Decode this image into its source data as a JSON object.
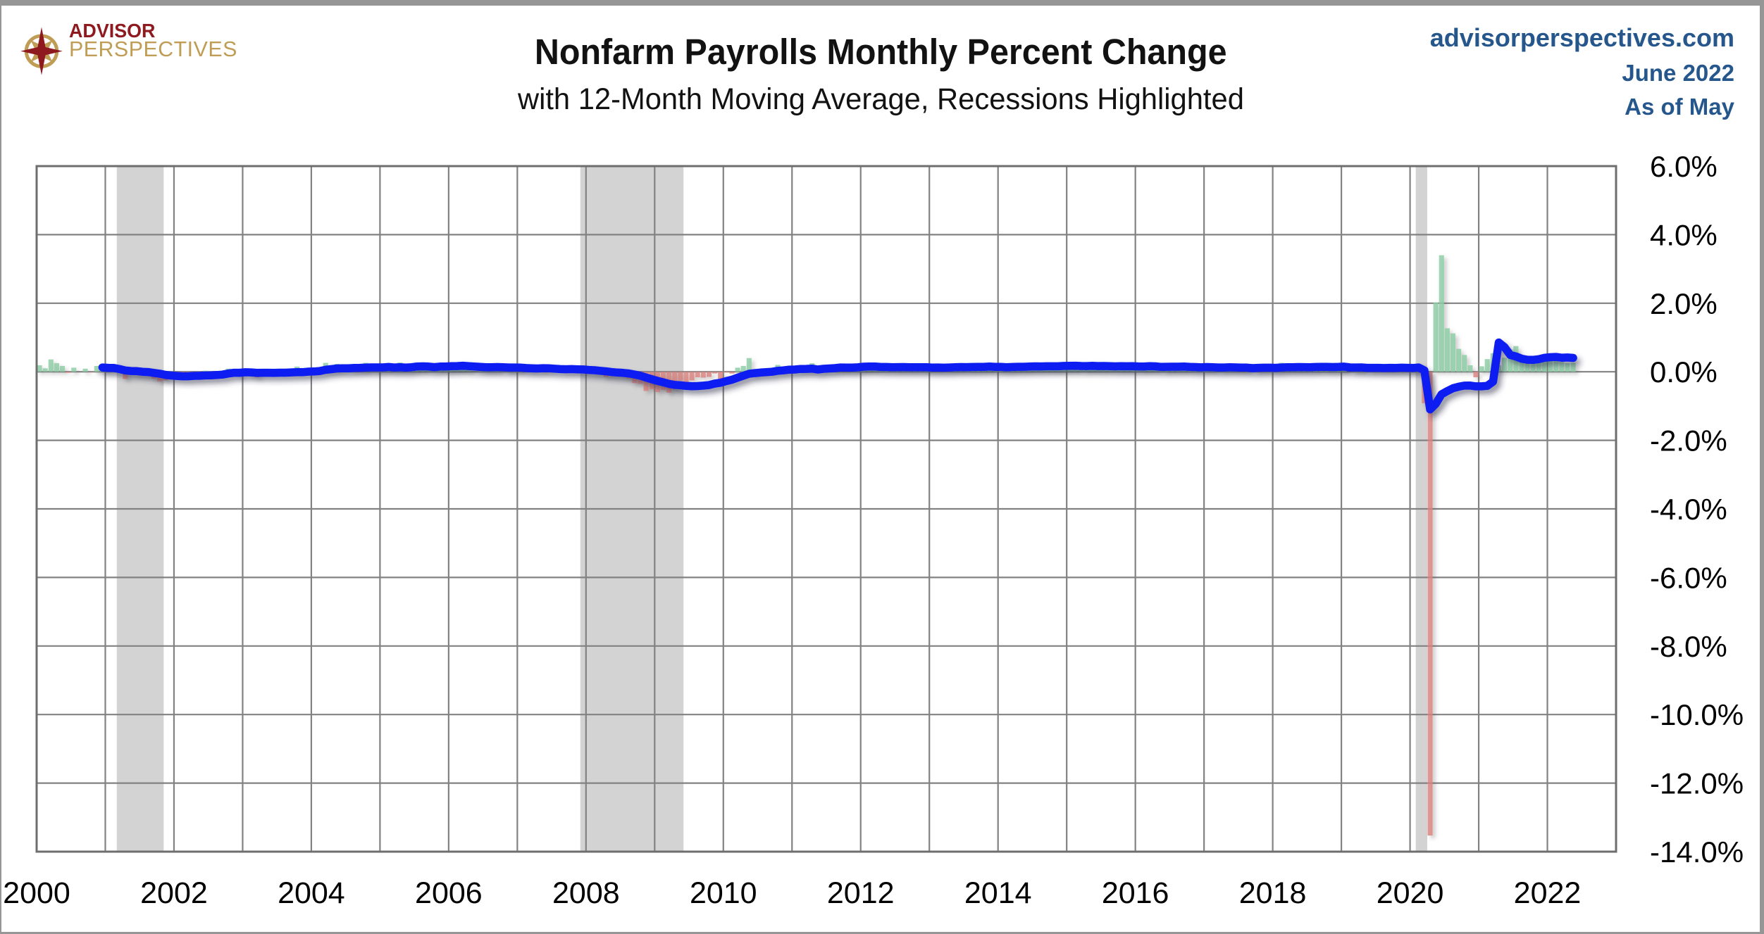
{
  "header": {
    "logo_line1": "ADVISOR",
    "logo_line2": "PERSPECTIVES",
    "title": "Nonfarm Payrolls Monthly Percent Change",
    "subtitle": "with 12-Month Moving Average, Recessions Highlighted",
    "site": "advisorperspectives.com",
    "issue": "June 2022",
    "as_of": "As of May"
  },
  "colors": {
    "header_blue": "#26578c",
    "logo_red": "#8e1a1f",
    "logo_gold": "#c09d55",
    "bar_positive": "#8ccda5",
    "bar_negative": "#d9837f",
    "ma_line": "#0a1ff0",
    "gridline": "#828282",
    "plot_border": "#6e6e6e",
    "recession_band": "#d3d3d3",
    "axis_text": "#000000"
  },
  "chart_data": {
    "type": "bar",
    "title": "Nonfarm Payrolls Monthly Percent Change",
    "subtitle": "with 12-Month Moving Average, Recessions Highlighted",
    "x_axis": {
      "start_year": 2000,
      "start_month": 1,
      "end_year": 2022,
      "end_month": 5,
      "axis_min_year": 2000,
      "axis_max_year": 2023,
      "gridline_step_years": 1,
      "tick_labels": [
        "2000",
        "2002",
        "2004",
        "2006",
        "2008",
        "2010",
        "2012",
        "2014",
        "2016",
        "2018",
        "2020",
        "2022"
      ],
      "tick_years": [
        2000,
        2002,
        2004,
        2006,
        2008,
        2010,
        2012,
        2014,
        2016,
        2018,
        2020,
        2022
      ]
    },
    "y_axis": {
      "min": -14,
      "max": 6,
      "step": 2,
      "unit": "percent",
      "tick_labels": [
        "6.0%",
        "4.0%",
        "2.0%",
        "0.0%",
        "-2.0%",
        "-4.0%",
        "-6.0%",
        "-8.0%",
        "-10.0%",
        "-12.0%",
        "-14.0%"
      ],
      "tick_values": [
        6,
        4,
        2,
        0,
        -2,
        -4,
        -6,
        -8,
        -10,
        -12,
        -14
      ]
    },
    "recessions": [
      {
        "start": 2001.167,
        "end": 2001.85
      },
      {
        "start": 2007.917,
        "end": 2009.42
      },
      {
        "start": 2020.083,
        "end": 2020.25
      }
    ],
    "series": [
      {
        "name": "Nonfarm payrolls monthly percent change",
        "type": "bar",
        "values": [
          0.19,
          0.1,
          0.36,
          0.25,
          0.17,
          -0.03,
          0.12,
          0.0,
          0.09,
          -0.01,
          0.17,
          0.1,
          0.05,
          0.05,
          -0.02,
          -0.21,
          -0.03,
          -0.09,
          -0.09,
          -0.11,
          -0.2,
          -0.28,
          -0.25,
          -0.12,
          -0.1,
          -0.08,
          -0.02,
          -0.05,
          -0.01,
          0.03,
          -0.05,
          -0.01,
          -0.04,
          0.09,
          0.01,
          -0.12,
          0.07,
          -0.12,
          -0.16,
          -0.04,
          -0.01,
          0.0,
          0.02,
          -0.03,
          0.08,
          0.15,
          0.01,
          0.09,
          0.12,
          0.03,
          0.26,
          0.19,
          0.23,
          0.06,
          0.03,
          0.09,
          0.12,
          0.26,
          0.05,
          0.1,
          0.1,
          0.18,
          0.1,
          0.27,
          0.13,
          0.18,
          0.27,
          0.14,
          0.05,
          0.06,
          0.25,
          0.12,
          0.2,
          0.23,
          0.21,
          0.13,
          0.01,
          0.06,
          0.14,
          0.13,
          0.11,
          0.01,
          0.15,
          0.13,
          0.17,
          0.06,
          0.13,
          0.06,
          0.1,
          0.05,
          -0.02,
          -0.01,
          0.06,
          0.06,
          0.08,
          0.07,
          0.01,
          -0.06,
          -0.05,
          -0.15,
          -0.13,
          -0.12,
          -0.15,
          -0.2,
          -0.33,
          -0.35,
          -0.56,
          -0.51,
          -0.59,
          -0.53,
          -0.61,
          -0.51,
          -0.26,
          -0.35,
          -0.25,
          -0.16,
          -0.17,
          -0.15,
          -0.05,
          -0.21,
          -0.02,
          -0.05,
          0.12,
          0.17,
          0.4,
          -0.1,
          -0.05,
          -0.03,
          -0.04,
          0.2,
          0.1,
          0.05,
          0.03,
          0.13,
          0.16,
          0.25,
          0.08,
          0.16,
          0.08,
          0.09,
          0.17,
          0.15,
          0.1,
          0.15,
          0.26,
          0.19,
          0.18,
          0.07,
          0.08,
          0.06,
          0.12,
          0.11,
          0.13,
          0.12,
          0.1,
          0.17,
          0.15,
          0.21,
          0.1,
          0.15,
          0.16,
          0.13,
          0.1,
          0.16,
          0.15,
          0.15,
          0.2,
          0.06,
          0.12,
          0.13,
          0.16,
          0.22,
          0.16,
          0.21,
          0.17,
          0.15,
          0.18,
          0.16,
          0.21,
          0.18,
          0.14,
          0.19,
          0.06,
          0.18,
          0.23,
          0.15,
          0.19,
          0.11,
          0.1,
          0.21,
          0.19,
          0.19,
          0.08,
          0.17,
          0.15,
          0.12,
          0.03,
          0.2,
          0.22,
          0.12,
          0.17,
          0.09,
          0.11,
          0.1,
          0.17,
          0.13,
          0.05,
          0.12,
          0.11,
          0.15,
          0.13,
          0.12,
          0.01,
          0.18,
          0.15,
          0.1,
          0.12,
          0.26,
          0.12,
          0.12,
          0.18,
          0.14,
          0.1,
          0.19,
          0.07,
          0.15,
          0.1,
          0.15,
          0.21,
          0.0,
          0.1,
          0.14,
          0.04,
          0.12,
          0.1,
          0.13,
          0.14,
          0.12,
          0.17,
          0.1,
          0.17,
          0.18,
          -0.92,
          -13.53,
          2.02,
          3.4,
          1.27,
          1.12,
          0.67,
          0.49,
          0.19,
          -0.16,
          0.16,
          0.37,
          0.54,
          0.19,
          0.41,
          0.65,
          0.75,
          0.33,
          0.29,
          0.45,
          0.43,
          0.34,
          0.34,
          0.48,
          0.28,
          0.25,
          0.26
        ]
      },
      {
        "name": "12-month moving average",
        "type": "line",
        "derived": "trailing_mean_of_bar_series",
        "window": 12
      }
    ]
  }
}
